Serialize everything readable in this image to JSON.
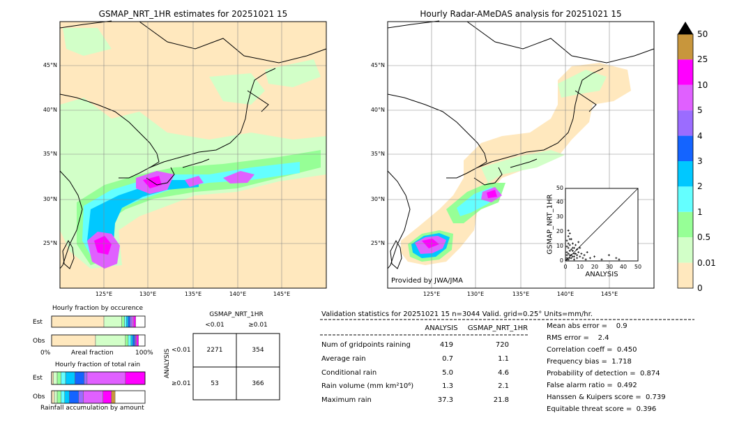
{
  "left_map": {
    "title": "GSMAP_NRT_1HR estimates for 20251021 15",
    "lat_labels": [
      "45°N",
      "40°N",
      "35°N",
      "30°N",
      "25°N"
    ],
    "lon_labels": [
      "125°E",
      "130°E",
      "135°E",
      "140°E",
      "145°E"
    ]
  },
  "right_map": {
    "title": "Hourly Radar-AMeDAS analysis for 20251021 15",
    "lat_labels": [
      "45°N",
      "40°N",
      "35°N",
      "30°N",
      "25°N"
    ],
    "lon_labels": [
      "125°E",
      "130°E",
      "135°E",
      "140°E",
      "145°E"
    ],
    "credit": "Provided by JWA/JMA"
  },
  "colorbar": {
    "labels": [
      "50",
      "25",
      "10",
      "5",
      "4",
      "3",
      "2",
      "1",
      "0.5",
      "0.01",
      "0"
    ],
    "colors": [
      "#c8963c",
      "#ff00ff",
      "#e060ff",
      "#9b6cff",
      "#1464ff",
      "#00c8ff",
      "#64ffff",
      "#96ff96",
      "#d2ffc8",
      "#ffe8be"
    ]
  },
  "occurrence": {
    "title": "Hourly fraction by occurence",
    "row_est": "Est",
    "row_obs": "Obs",
    "axis_left": "0%",
    "axis_mid": "Areal fraction",
    "axis_right": "100%",
    "est_fracs": [
      0.56,
      0.19,
      0.03,
      0.02,
      0.02,
      0.02,
      0.02,
      0.02,
      0.02
    ],
    "obs_fracs": [
      0.47,
      0.32,
      0.03,
      0.03,
      0.02,
      0.02,
      0.01,
      0.01,
      0.02
    ]
  },
  "total_rain": {
    "title": "Hourly fraction of total rain",
    "row_est": "Est",
    "row_obs": "Obs",
    "footer": "Rainfall accumulation by amount",
    "est_fracs": [
      0.02,
      0.04,
      0.04,
      0.05,
      0.1,
      0.1,
      0.03,
      0.41,
      0.21
    ],
    "obs_fracs": [
      0.03,
      0.03,
      0.04,
      0.04,
      0.05,
      0.1,
      0.05,
      0.21,
      0.09,
      0.04
    ]
  },
  "contingency": {
    "col_header": "GSMAP_NRT_1HR",
    "col1": "<0.01",
    "col2": "≥0.01",
    "row_axis": "ANALYSIS",
    "row1": "<0.01",
    "row2": "≥0.01",
    "c11": "2271",
    "c12": "354",
    "c21": "53",
    "c22": "366"
  },
  "validation": {
    "header": "Validation statistics for 20251021 15  n=3044 Valid. grid=0.25° Units=mm/hr.",
    "col_analysis": "ANALYSIS",
    "col_gsmap": "GSMAP_NRT_1HR",
    "rows": [
      {
        "label": "Num of gridpoints raining",
        "a": "419",
        "g": "720"
      },
      {
        "label": "Average rain",
        "a": "0.7",
        "g": "1.1"
      },
      {
        "label": "Conditional rain",
        "a": "5.0",
        "g": "4.6"
      },
      {
        "label": "Rain volume (mm km²10⁶)",
        "a": "1.3",
        "g": "2.1"
      },
      {
        "label": "Maximum rain",
        "a": "37.3",
        "g": "21.8"
      }
    ],
    "scores": [
      "Mean abs error =    0.9",
      "RMS error =    2.4",
      "Correlation coeff =  0.450",
      "Frequency bias =  1.718",
      "Probability of detection =  0.874",
      "False alarm ratio =  0.492",
      "Hanssen & Kuipers score =  0.739",
      "Equitable threat score =  0.396"
    ]
  },
  "chart_data": {
    "type": "scatter",
    "xlabel": "ANALYSIS",
    "ylabel": "GSMAP_NRT_1HR",
    "xlim": [
      0,
      50
    ],
    "ylim": [
      0,
      50
    ],
    "ticks": [
      "0",
      "10",
      "20",
      "30",
      "40",
      "50"
    ],
    "points": [
      [
        1,
        2
      ],
      [
        2,
        1
      ],
      [
        3,
        4
      ],
      [
        1,
        6
      ],
      [
        4,
        2
      ],
      [
        5,
        7
      ],
      [
        2,
        9
      ],
      [
        6,
        3
      ],
      [
        3,
        11
      ],
      [
        7,
        5
      ],
      [
        1,
        14
      ],
      [
        8,
        2
      ],
      [
        2,
        17
      ],
      [
        4,
        8
      ],
      [
        9,
        6
      ],
      [
        3,
        19
      ],
      [
        5,
        12
      ],
      [
        10,
        3
      ],
      [
        2,
        21
      ],
      [
        6,
        9
      ],
      [
        11,
        5
      ],
      [
        1,
        4
      ],
      [
        4,
        15
      ],
      [
        12,
        2
      ],
      [
        7,
        11
      ],
      [
        3,
        7
      ],
      [
        13,
        4
      ],
      [
        2,
        12
      ],
      [
        8,
        8
      ],
      [
        14,
        1
      ],
      [
        5,
        3
      ],
      [
        15,
        6
      ],
      [
        1,
        10
      ],
      [
        9,
        13
      ],
      [
        17,
        2
      ],
      [
        6,
        5
      ],
      [
        20,
        3
      ],
      [
        3,
        2
      ],
      [
        25,
        1
      ],
      [
        30,
        4
      ],
      [
        35,
        2
      ],
      [
        37,
        1
      ],
      [
        2,
        5
      ],
      [
        4,
        4
      ],
      [
        6,
        1
      ],
      [
        8,
        4
      ],
      [
        10,
        9
      ],
      [
        1,
        1
      ],
      [
        3,
        15
      ],
      [
        5,
        9
      ]
    ]
  }
}
